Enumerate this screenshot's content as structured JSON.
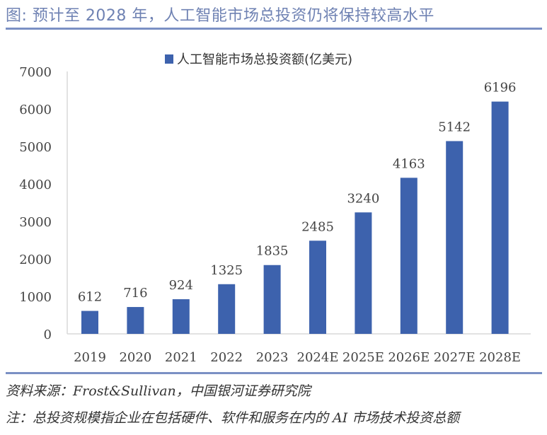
{
  "title": "图: 预计至 2028 年，人工智能市场总投资仍将保持较高水平",
  "source": "资料来源：Frost&Sullivan，中国银河证券研究院",
  "note": "注：总投资规模指企业在包括硬件、软件和服务在内的 AI 市场技术投资总额",
  "chart_data": {
    "type": "bar",
    "categories": [
      "2019",
      "2020",
      "2021",
      "2022",
      "2023",
      "2024E",
      "2025E",
      "2026E",
      "2027E",
      "2028E"
    ],
    "series": [
      {
        "name": "人工智能市场总投资额(亿美元)",
        "values": [
          612,
          716,
          924,
          1325,
          1835,
          2485,
          3240,
          4163,
          5142,
          6196
        ],
        "color": "#3d62ad"
      }
    ],
    "ylim": [
      0,
      7000
    ],
    "yticks": [
      0,
      1000,
      2000,
      3000,
      4000,
      5000,
      6000,
      7000
    ],
    "data_labels": true,
    "legend": "top-center",
    "grid": false
  }
}
